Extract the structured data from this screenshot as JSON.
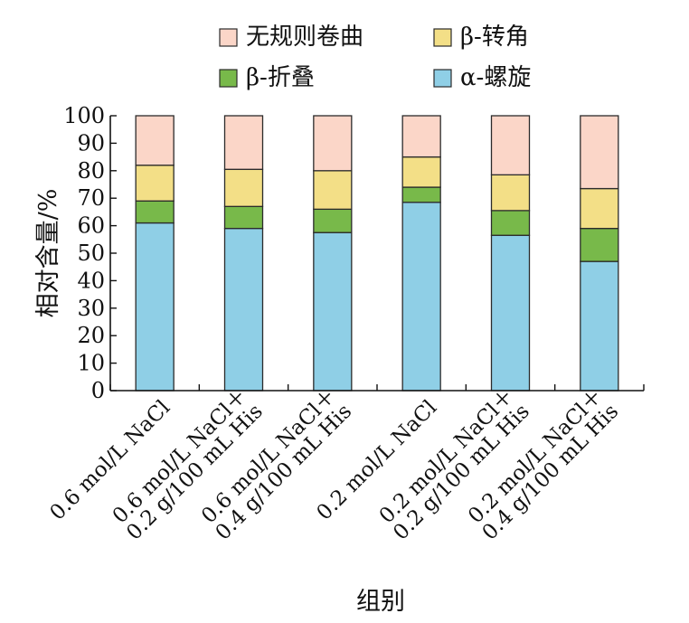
{
  "chart_data": {
    "type": "bar",
    "stacked": true,
    "categories": [
      [
        "0.6 mol/L NaCl"
      ],
      [
        "0.6 mol/L NaCl＋",
        "0.2 g/100 mL His"
      ],
      [
        "0.6 mol/L NaCl＋",
        "0.4 g/100 mL His"
      ],
      [
        "0.2 mol/L NaCl"
      ],
      [
        "0.2 mol/L NaCl＋",
        "0.2 g/100 mL His"
      ],
      [
        "0.2 mol/L NaCl＋",
        "0.4 g/100 mL His"
      ]
    ],
    "series": [
      {
        "name": "α-螺旋",
        "values": [
          61,
          59,
          57.5,
          68.5,
          56.5,
          47
        ],
        "color": "#8fcfe6"
      },
      {
        "name": "β-折叠",
        "values": [
          8,
          8,
          8.5,
          5.5,
          9,
          12
        ],
        "color": "#78b94a"
      },
      {
        "name": "β-转角",
        "values": [
          13,
          13.5,
          14,
          11,
          13,
          14.5
        ],
        "color": "#f3df87"
      },
      {
        "name": "无规则卷曲",
        "values": [
          18,
          19.5,
          20,
          15,
          21.5,
          26.5
        ],
        "color": "#fbd6c8"
      }
    ],
    "xlabel": "组别",
    "ylabel": "相对含量/%",
    "ylim": [
      0,
      100
    ],
    "yticks": [
      "0",
      "10",
      "20",
      "30",
      "40",
      "50",
      "60",
      "70",
      "80",
      "90",
      "100"
    ],
    "grid": false,
    "legend": {
      "placement": "top",
      "order": [
        "无规则卷曲",
        "β-转角",
        "β-折叠",
        "α-螺旋"
      ]
    }
  }
}
